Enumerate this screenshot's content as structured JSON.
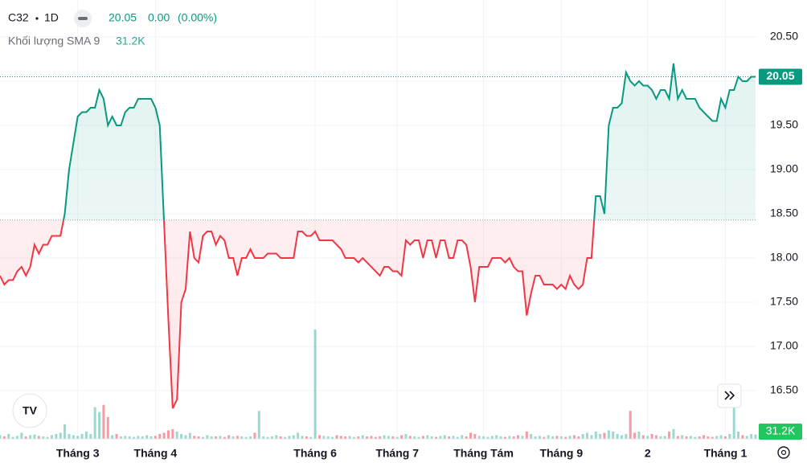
{
  "chart_data": {
    "type": "baseline",
    "symbol": "C32",
    "interval": "1D",
    "last_price": "20.05",
    "change": "0.00",
    "change_pct": "(0.00%)",
    "volume_label": "Khối lượng SMA 9",
    "volume_sma": "31.2K",
    "baseline": 18.43,
    "up_color": "#089981",
    "down_color": "#f23645",
    "grid": true,
    "values": [
      17.8,
      17.7,
      17.75,
      17.75,
      17.85,
      17.9,
      17.8,
      17.9,
      18.15,
      18.05,
      18.15,
      18.15,
      18.25,
      18.25,
      18.25,
      18.5,
      19.0,
      19.3,
      19.6,
      19.65,
      19.65,
      19.7,
      19.7,
      19.9,
      19.8,
      19.5,
      19.6,
      19.5,
      19.5,
      19.65,
      19.7,
      19.7,
      19.8,
      19.8,
      19.8,
      19.8,
      19.7,
      19.5,
      18.4,
      17.3,
      16.3,
      16.4,
      17.5,
      17.65,
      18.3,
      18.0,
      17.95,
      18.25,
      18.3,
      18.3,
      18.15,
      18.25,
      18.2,
      18.0,
      18.0,
      17.8,
      18.0,
      18.0,
      18.1,
      18.0,
      18.0,
      18.0,
      18.05,
      18.05,
      18.05,
      18.0,
      18.0,
      18.0,
      18.0,
      18.3,
      18.3,
      18.25,
      18.25,
      18.3,
      18.2,
      18.2,
      18.2,
      18.2,
      18.15,
      18.1,
      18.0,
      18.0,
      18.0,
      17.95,
      18.0,
      17.95,
      17.9,
      17.85,
      17.8,
      17.9,
      17.9,
      17.85,
      17.85,
      17.8,
      18.2,
      18.15,
      18.2,
      18.2,
      18.0,
      18.2,
      18.2,
      18.0,
      18.2,
      18.2,
      18.0,
      18.0,
      18.2,
      18.2,
      18.15,
      17.9,
      17.5,
      17.9,
      17.9,
      17.9,
      18.0,
      18.0,
      18.0,
      17.95,
      18.0,
      17.9,
      17.85,
      17.85,
      17.35,
      17.6,
      17.8,
      17.8,
      17.7,
      17.7,
      17.7,
      17.65,
      17.7,
      17.65,
      17.8,
      17.7,
      17.65,
      17.7,
      18.0,
      18.0,
      18.7,
      18.7,
      18.5,
      19.5,
      19.7,
      19.7,
      19.75,
      20.1,
      20.0,
      19.95,
      20.0,
      19.95,
      19.95,
      19.9,
      19.8,
      19.9,
      19.9,
      19.8,
      20.2,
      19.8,
      19.9,
      19.8,
      19.8,
      19.8,
      19.7,
      19.65,
      19.6,
      19.55,
      19.55,
      19.8,
      19.7,
      19.9,
      19.9,
      20.05,
      20.0,
      20.0,
      20.05,
      20.05
    ],
    "volumes": [
      15,
      10,
      20,
      8,
      12,
      25,
      10,
      15,
      18,
      12,
      10,
      8,
      15,
      20,
      25,
      60,
      20,
      15,
      12,
      20,
      30,
      20,
      130,
      110,
      140,
      90,
      15,
      20,
      10,
      12,
      10,
      8,
      12,
      10,
      15,
      10,
      12,
      20,
      25,
      35,
      40,
      30,
      20,
      15,
      25,
      12,
      10,
      8,
      15,
      10,
      10,
      12,
      8,
      15,
      10,
      12,
      10,
      8,
      10,
      25,
      115,
      10,
      8,
      10,
      15,
      10,
      8,
      12,
      15,
      25,
      12,
      10,
      8,
      450,
      15,
      12,
      10,
      8,
      15,
      12,
      10,
      12,
      8,
      10,
      15,
      10,
      12,
      8,
      10,
      15,
      12,
      10,
      8,
      15,
      20,
      12,
      10,
      8,
      12,
      15,
      10,
      8,
      12,
      15,
      10,
      12,
      8,
      15,
      10,
      25,
      20,
      12,
      10,
      8,
      12,
      15,
      10,
      8,
      12,
      10,
      15,
      12,
      30,
      20,
      10,
      12,
      8,
      15,
      10,
      12,
      10,
      8,
      12,
      15,
      10,
      20,
      25,
      15,
      30,
      20,
      25,
      35,
      30,
      20,
      15,
      20,
      115,
      25,
      30,
      15,
      12,
      20,
      15,
      10,
      12,
      30,
      40,
      12,
      15,
      10,
      12,
      8,
      10,
      15,
      10,
      8,
      12,
      15,
      10,
      20,
      130,
      30,
      15,
      12,
      20,
      18
    ],
    "ylim": [
      15.955,
      20.918
    ],
    "yticks": [
      {
        "value": 16.5,
        "label": "16.50"
      },
      {
        "value": 17,
        "label": "17.00"
      },
      {
        "value": 17.5,
        "label": "17.50"
      },
      {
        "value": 18,
        "label": "18.00"
      },
      {
        "value": 18.5,
        "label": "18.50"
      },
      {
        "value": 19,
        "label": "19.00"
      },
      {
        "value": 19.5,
        "label": "19.50"
      },
      {
        "value": 20,
        "label": "20.00"
      },
      {
        "value": 20.5,
        "label": "20.50"
      }
    ],
    "xticks": [
      {
        "value": 18,
        "label": "Tháng 3"
      },
      {
        "value": 36,
        "label": "Tháng 4"
      },
      {
        "value": 73,
        "label": "Tháng 6"
      },
      {
        "value": 92,
        "label": "Tháng 7"
      },
      {
        "value": 112,
        "label": "Tháng Tám"
      },
      {
        "value": 130,
        "label": "Tháng 9"
      },
      {
        "value": 150,
        "label": "2"
      },
      {
        "value": 168,
        "label": "Tháng 1"
      }
    ]
  }
}
